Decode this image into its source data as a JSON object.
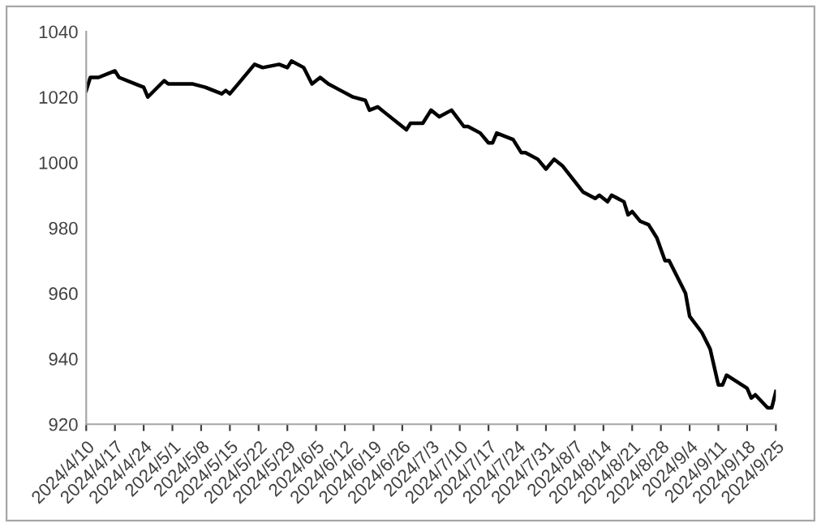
{
  "chart_data": {
    "type": "line",
    "color": "#000000",
    "x": [
      "2024-04-10",
      "2024-04-11",
      "2024-04-13",
      "2024-04-17",
      "2024-04-18",
      "2024-04-22",
      "2024-04-24",
      "2024-04-25",
      "2024-04-29",
      "2024-04-30",
      "2024-05-06",
      "2024-05-09",
      "2024-05-13",
      "2024-05-14",
      "2024-05-15",
      "2024-05-17",
      "2024-05-21",
      "2024-05-23",
      "2024-05-27",
      "2024-05-29",
      "2024-05-30",
      "2024-06-02",
      "2024-06-04",
      "2024-06-06",
      "2024-06-08",
      "2024-06-11",
      "2024-06-14",
      "2024-06-17",
      "2024-06-18",
      "2024-06-20",
      "2024-06-22",
      "2024-06-25",
      "2024-06-27",
      "2024-06-28",
      "2024-07-01",
      "2024-07-03",
      "2024-07-05",
      "2024-07-08",
      "2024-07-11",
      "2024-07-12",
      "2024-07-15",
      "2024-07-17",
      "2024-07-18",
      "2024-07-19",
      "2024-07-23",
      "2024-07-25",
      "2024-07-26",
      "2024-07-29",
      "2024-07-31",
      "2024-08-02",
      "2024-08-04",
      "2024-08-09",
      "2024-08-12",
      "2024-08-13",
      "2024-08-15",
      "2024-08-16",
      "2024-08-19",
      "2024-08-20",
      "2024-08-21",
      "2024-08-23",
      "2024-08-25",
      "2024-08-27",
      "2024-08-29",
      "2024-08-30",
      "2024-09-03",
      "2024-09-04",
      "2024-09-07",
      "2024-09-09",
      "2024-09-11",
      "2024-09-12",
      "2024-09-13",
      "2024-09-18",
      "2024-09-19",
      "2024-09-20",
      "2024-09-23",
      "2024-09-24",
      "2024-09-25"
    ],
    "values": [
      1022,
      1026,
      1026,
      1028,
      1026,
      1024,
      1023,
      1020,
      1025,
      1024,
      1024,
      1023,
      1021,
      1022,
      1021,
      1024,
      1030,
      1029,
      1030,
      1029,
      1031,
      1029,
      1024,
      1026,
      1024,
      1022,
      1020,
      1019,
      1016,
      1017,
      1015,
      1012,
      1010,
      1012,
      1012,
      1016,
      1014,
      1016,
      1011,
      1011,
      1009,
      1006,
      1006,
      1009,
      1007,
      1003,
      1003,
      1001,
      998,
      1001,
      999,
      991,
      989,
      990,
      988,
      990,
      988,
      984,
      985,
      982,
      981,
      977,
      970,
      970,
      960,
      953,
      948,
      943,
      932,
      932,
      935,
      931,
      928,
      929,
      925,
      925,
      930
    ],
    "xlim": [
      "2024-04-10",
      "2024-09-25"
    ],
    "xticks": [
      {
        "value": "2024-04-10",
        "label": "2024/4/10"
      },
      {
        "value": "2024-04-17",
        "label": "2024/4/17"
      },
      {
        "value": "2024-04-24",
        "label": "2024/4/24"
      },
      {
        "value": "2024-05-01",
        "label": "2024/5/1"
      },
      {
        "value": "2024-05-08",
        "label": "2024/5/8"
      },
      {
        "value": "2024-05-15",
        "label": "2024/5/15"
      },
      {
        "value": "2024-05-22",
        "label": "2024/5/22"
      },
      {
        "value": "2024-05-29",
        "label": "2024/5/29"
      },
      {
        "value": "2024-06-05",
        "label": "2024/6/5"
      },
      {
        "value": "2024-06-12",
        "label": "2024/6/12"
      },
      {
        "value": "2024-06-19",
        "label": "2024/6/19"
      },
      {
        "value": "2024-06-26",
        "label": "2024/6/26"
      },
      {
        "value": "2024-07-03",
        "label": "2024/7/3"
      },
      {
        "value": "2024-07-10",
        "label": "2024/7/10"
      },
      {
        "value": "2024-07-17",
        "label": "2024/7/17"
      },
      {
        "value": "2024-07-24",
        "label": "2024/7/24"
      },
      {
        "value": "2024-07-31",
        "label": "2024/7/31"
      },
      {
        "value": "2024-08-07",
        "label": "2024/8/7"
      },
      {
        "value": "2024-08-14",
        "label": "2024/8/14"
      },
      {
        "value": "2024-08-21",
        "label": "2024/8/21"
      },
      {
        "value": "2024-08-28",
        "label": "2024/8/28"
      },
      {
        "value": "2024-09-04",
        "label": "2024/9/4"
      },
      {
        "value": "2024-09-11",
        "label": "2024/9/11"
      },
      {
        "value": "2024-09-18",
        "label": "2024/9/18"
      },
      {
        "value": "2024-09-25",
        "label": "2024/9/25"
      }
    ],
    "ylim": [
      920,
      1040
    ],
    "yticks": [
      920,
      940,
      960,
      980,
      1000,
      1020,
      1040
    ],
    "grid": false,
    "legend": false,
    "marker": "none",
    "line_style": "solid"
  }
}
